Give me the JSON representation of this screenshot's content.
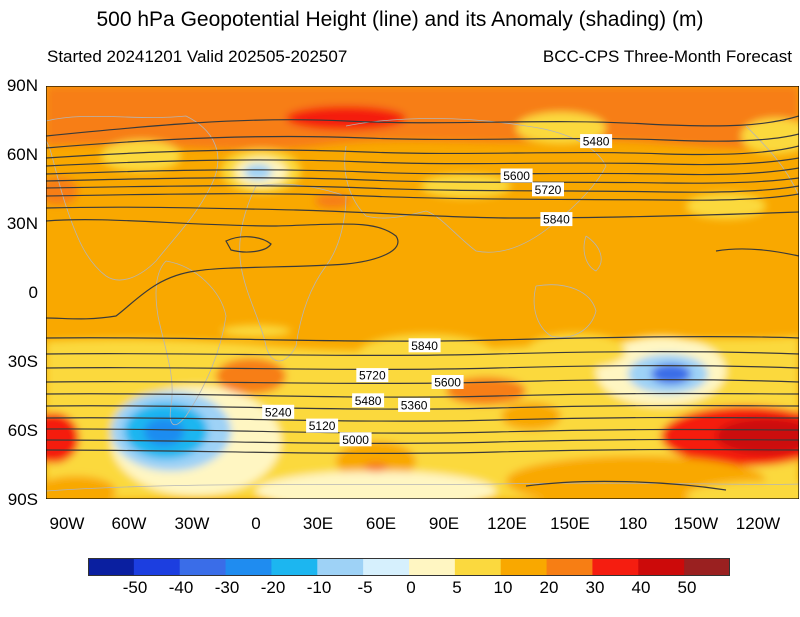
{
  "title": "500 hPa Geopotential Height (line) and its Anomaly (shading) (m)",
  "subtitle_left": "Started 20241201  Valid 202505-202507",
  "subtitle_right": "BCC-CPS Three-Month Forecast",
  "lat_labels": [
    "90N",
    "60N",
    "30N",
    "0",
    "30S",
    "60S",
    "90S"
  ],
  "lon_labels": [
    "90W",
    "60W",
    "30W",
    "0",
    "30E",
    "60E",
    "90E",
    "120E",
    "150E",
    "180",
    "150W",
    "120W"
  ],
  "contour_labels": [
    {
      "text": "5480",
      "lon": 158,
      "lat": 66
    },
    {
      "text": "5600",
      "lon": 120,
      "lat": 51
    },
    {
      "text": "5720",
      "lon": 135,
      "lat": 45
    },
    {
      "text": "5840",
      "lon": 139,
      "lat": 32
    },
    {
      "text": "5840",
      "lon": 76,
      "lat": -23
    },
    {
      "text": "5720",
      "lon": 51,
      "lat": -36
    },
    {
      "text": "5600",
      "lon": 87,
      "lat": -39
    },
    {
      "text": "5480",
      "lon": 49,
      "lat": -47
    },
    {
      "text": "5360",
      "lon": 71,
      "lat": -49
    },
    {
      "text": "5240",
      "lon": 6,
      "lat": -52
    },
    {
      "text": "5120",
      "lon": 27,
      "lat": -58
    },
    {
      "text": "5000",
      "lon": 43,
      "lat": -64
    }
  ],
  "colorbar": {
    "labels": [
      "-50",
      "-40",
      "-30",
      "-20",
      "-10",
      "-5",
      "0",
      "5",
      "10",
      "20",
      "30",
      "40",
      "50"
    ],
    "colors": [
      "#0a1fa0",
      "#1c3ee0",
      "#3a6de8",
      "#1f8cf0",
      "#1cb6f0",
      "#9ed2f6",
      "#d6f0fd",
      "#fff6c2",
      "#fbd93e",
      "#f9a800",
      "#f77e14",
      "#f51d10",
      "#cc0a0a",
      "#9a2020"
    ]
  }
}
